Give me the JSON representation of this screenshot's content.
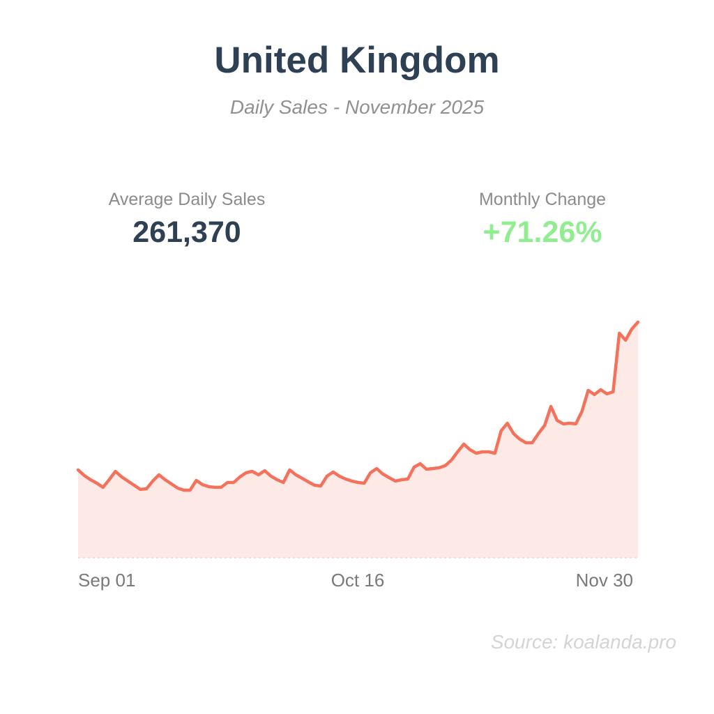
{
  "header": {
    "title": "United Kingdom",
    "subtitle": "Daily Sales - November 2025"
  },
  "stats": [
    {
      "label": "Average Daily Sales",
      "value": "261,370",
      "color": "#2e4053"
    },
    {
      "label": "Monthly Change",
      "value": "+71.26%",
      "color": "#90ee90"
    }
  ],
  "footer": {
    "source": "Source: koalanda.pro"
  },
  "chart_data": {
    "type": "area",
    "title": "Daily Sales - November 2025",
    "series_name": "Daily Sales",
    "x_start": "2025-09-01",
    "x_end": "2025-11-30",
    "x_frequency": "daily",
    "x_tick_labels": [
      "Sep 01",
      "Oct 16",
      "Nov 30"
    ],
    "ylim": [
      0,
      450000
    ],
    "grid": false,
    "legend": false,
    "y_axis_visible": false,
    "line_color": "#f4725c",
    "fill_color": "rgba(244,114,92,0.15)",
    "baseline_color": "#f6d3ca",
    "values": [
      159800,
      149600,
      142000,
      135700,
      128100,
      142000,
      157200,
      147100,
      139500,
      131900,
      124300,
      125500,
      139500,
      150900,
      142000,
      134400,
      126800,
      123000,
      123000,
      140700,
      133100,
      129300,
      128100,
      128100,
      136900,
      136900,
      147100,
      154700,
      157200,
      150900,
      158500,
      148400,
      142000,
      136900,
      159800,
      150900,
      144600,
      138200,
      131900,
      130600,
      148400,
      156000,
      148400,
      143300,
      139500,
      136900,
      135700,
      154700,
      162300,
      152200,
      145800,
      139500,
      142000,
      143300,
      164800,
      171200,
      161000,
      162300,
      163600,
      167400,
      177500,
      192700,
      206700,
      196500,
      190200,
      192700,
      192700,
      190200,
      230800,
      244700,
      225700,
      215600,
      209200,
      209200,
      225700,
      240900,
      275200,
      249800,
      243500,
      244700,
      243500,
      266300,
      304300,
      296700,
      305600,
      298000,
      301800,
      408300,
      395600,
      415900,
      428600
    ]
  }
}
